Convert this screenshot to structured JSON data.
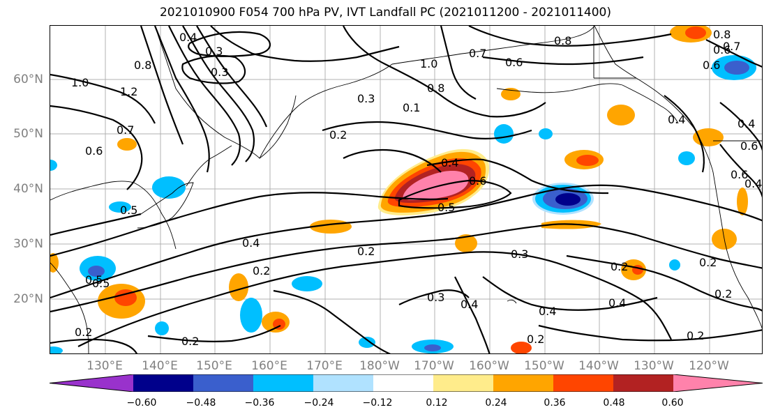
{
  "title": "2021010900 F054 700 hPa PV, IVT Landfall PC (2021011200 - 2021011400)",
  "lat_labels": [
    "60°N",
    "50°N",
    "40°N",
    "30°N",
    "20°N"
  ],
  "lon_labels": [
    "130°E",
    "140°E",
    "150°E",
    "160°E",
    "170°E",
    "180°W",
    "170°W",
    "160°W",
    "150°W",
    "140°W",
    "130°W",
    "120°W"
  ],
  "colorbar": {
    "colors": [
      "#9932CC",
      "#00008B",
      "#3A5FCD",
      "#00BFFF",
      "#B0E2FF",
      "#FFFFFF",
      "#FFEC8B",
      "#FFA500",
      "#FF4500",
      "#B22222",
      "#FF82AB"
    ],
    "tick_labels": [
      "−0.60",
      "−0.48",
      "−0.36",
      "−0.24",
      "−0.12",
      "0.12",
      "0.24",
      "0.36",
      "0.48",
      "0.60"
    ]
  },
  "contour_labels": [
    "0.4",
    "0.3",
    "0.2",
    "0.2",
    "0.5",
    "1.0",
    "1.2",
    "0.8",
    "0.7",
    "0.6",
    "1.0",
    "0.3",
    "0.1",
    "0.8",
    "0.7",
    "0.8",
    "0.6",
    "0.3",
    "0.5",
    "0.4",
    "0.6",
    "0.5",
    "0.4",
    "0.2",
    "0.2",
    "0.5",
    "0.2",
    "0.3",
    "0.3",
    "0.4",
    "0.4",
    "0.2",
    "0.2",
    "0.2",
    "0.2",
    "0.4",
    "0.2",
    "0.8",
    "0.6",
    "0.7",
    "0.6",
    "0.4",
    "0.6",
    "0.6",
    "0.4",
    "0.4"
  ]
}
